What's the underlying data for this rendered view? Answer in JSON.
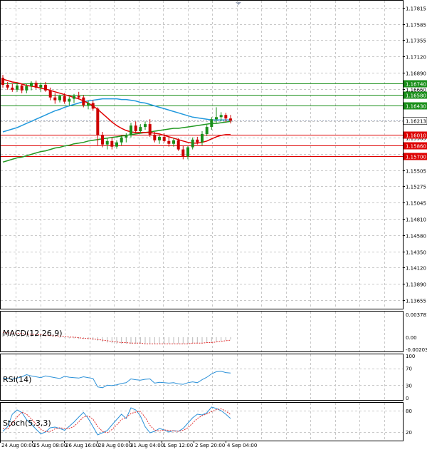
{
  "chart_data": [
    {
      "type": "candlestick",
      "price_ticks": [
        "1.17815",
        "1.17585",
        "1.17355",
        "1.17120",
        "1.16890",
        "1.16660",
        "1.16430",
        "1.16200",
        "1.15965",
        "1.15735",
        "1.15505",
        "1.15275",
        "1.15045",
        "1.14810",
        "1.14580",
        "1.14350",
        "1.14120",
        "1.13890",
        "1.13655"
      ],
      "ylim": [
        1.13655,
        1.17815
      ],
      "x_labels": [
        "24 Aug 00:00",
        "25 Aug 08:00",
        "26 Aug 16:00",
        "28 Aug 00:00",
        "31 Aug 04:00",
        "1 Sep 12:00",
        "2 Sep 20:00",
        "4 Sep 04:00"
      ],
      "candles": [
        [
          1.1682,
          1.1686,
          1.1668,
          1.1672
        ],
        [
          1.1672,
          1.1676,
          1.1665,
          1.1668
        ],
        [
          1.1668,
          1.1674,
          1.1662,
          1.1665
        ],
        [
          1.1665,
          1.1675,
          1.1662,
          1.1671
        ],
        [
          1.1671,
          1.1674,
          1.166,
          1.1664
        ],
        [
          1.1664,
          1.1673,
          1.166,
          1.167
        ],
        [
          1.167,
          1.1677,
          1.1664,
          1.1675
        ],
        [
          1.1675,
          1.1678,
          1.1666,
          1.1668
        ],
        [
          1.1668,
          1.1675,
          1.1662,
          1.1672
        ],
        [
          1.1672,
          1.1676,
          1.1662,
          1.1664
        ],
        [
          1.1664,
          1.1668,
          1.165,
          1.1654
        ],
        [
          1.1654,
          1.166,
          1.1645,
          1.165
        ],
        [
          1.165,
          1.1658,
          1.1647,
          1.1656
        ],
        [
          1.1656,
          1.166,
          1.1645,
          1.1648
        ],
        [
          1.1648,
          1.1655,
          1.1642,
          1.1652
        ],
        [
          1.1652,
          1.1659,
          1.1646,
          1.1656
        ],
        [
          1.1656,
          1.1662,
          1.1651,
          1.1654
        ],
        [
          1.1654,
          1.1657,
          1.164,
          1.1643
        ],
        [
          1.1643,
          1.165,
          1.1637,
          1.1646
        ],
        [
          1.1646,
          1.165,
          1.1635,
          1.1638
        ],
        [
          1.1638,
          1.164,
          1.1586,
          1.16
        ],
        [
          1.16,
          1.1605,
          1.1583,
          1.1587
        ],
        [
          1.1587,
          1.1596,
          1.158,
          1.1592
        ],
        [
          1.1592,
          1.1597,
          1.158,
          1.1584
        ],
        [
          1.1584,
          1.1593,
          1.1581,
          1.159
        ],
        [
          1.159,
          1.16,
          1.1586,
          1.1597
        ],
        [
          1.1597,
          1.1603,
          1.159,
          1.16
        ],
        [
          1.16,
          1.1618,
          1.1597,
          1.1614
        ],
        [
          1.1614,
          1.162,
          1.1603,
          1.1606
        ],
        [
          1.1606,
          1.1616,
          1.1603,
          1.1612
        ],
        [
          1.1612,
          1.162,
          1.1608,
          1.1616
        ],
        [
          1.1616,
          1.1623,
          1.1598,
          1.1601
        ],
        [
          1.1601,
          1.1605,
          1.159,
          1.1593
        ],
        [
          1.1593,
          1.16,
          1.1588,
          1.1598
        ],
        [
          1.1598,
          1.1603,
          1.159,
          1.1592
        ],
        [
          1.1592,
          1.1597,
          1.1584,
          1.1588
        ],
        [
          1.1588,
          1.1596,
          1.1584,
          1.1593
        ],
        [
          1.1593,
          1.1596,
          1.1578,
          1.158
        ],
        [
          1.158,
          1.1585,
          1.1566,
          1.157
        ],
        [
          1.157,
          1.1585,
          1.1566,
          1.1583
        ],
        [
          1.1583,
          1.1597,
          1.158,
          1.1594
        ],
        [
          1.1594,
          1.1598,
          1.1587,
          1.159
        ],
        [
          1.159,
          1.1606,
          1.1586,
          1.1602
        ],
        [
          1.1602,
          1.1615,
          1.1599,
          1.1612
        ],
        [
          1.1612,
          1.1626,
          1.1608,
          1.1623
        ],
        [
          1.1623,
          1.164,
          1.1618,
          1.1626
        ],
        [
          1.1626,
          1.1633,
          1.162,
          1.1629
        ],
        [
          1.1629,
          1.1632,
          1.1619,
          1.1624
        ],
        [
          1.1624,
          1.1629,
          1.1617,
          1.1621
        ]
      ],
      "ma_fast_color": "#e00000",
      "ma_fast": [
        1.168,
        1.1678,
        1.1676,
        1.1675,
        1.1673,
        1.1671,
        1.167,
        1.1669,
        1.1667,
        1.1666,
        1.1664,
        1.1662,
        1.166,
        1.1658,
        1.1656,
        1.1654,
        1.1652,
        1.1649,
        1.1646,
        1.1642,
        1.1637,
        1.1631,
        1.1625,
        1.1619,
        1.1614,
        1.161,
        1.1607,
        1.1605,
        1.1604,
        1.1604,
        1.1604,
        1.1604,
        1.1603,
        1.1602,
        1.16,
        1.1598,
        1.1596,
        1.1594,
        1.1592,
        1.159,
        1.1589,
        1.1589,
        1.159,
        1.1592,
        1.1595,
        1.1598,
        1.16,
        1.1601,
        1.1601
      ],
      "ma_mid_color": "#2299dd",
      "ma_mid": [
        1.1605,
        1.1607,
        1.1609,
        1.1611,
        1.1614,
        1.1617,
        1.162,
        1.1623,
        1.1626,
        1.1629,
        1.1632,
        1.1635,
        1.1637,
        1.164,
        1.1642,
        1.1644,
        1.1646,
        1.1648,
        1.1649,
        1.165,
        1.1651,
        1.1652,
        1.1652,
        1.1652,
        1.1652,
        1.1651,
        1.1651,
        1.165,
        1.1649,
        1.1647,
        1.1646,
        1.1644,
        1.1642,
        1.164,
        1.1638,
        1.1636,
        1.1634,
        1.1632,
        1.163,
        1.1628,
        1.1626,
        1.1625,
        1.1624,
        1.1623,
        1.1622,
        1.1622,
        1.1622,
        1.1622,
        1.1622
      ],
      "ma_slow_color": "#229922",
      "ma_slow": [
        1.1562,
        1.1564,
        1.1566,
        1.1568,
        1.1569,
        1.1571,
        1.1573,
        1.1575,
        1.1577,
        1.1578,
        1.158,
        1.1582,
        1.1583,
        1.1585,
        1.1586,
        1.1588,
        1.1589,
        1.159,
        1.1592,
        1.1593,
        1.1594,
        1.1595,
        1.1596,
        1.1597,
        1.1598,
        1.1599,
        1.16,
        1.1601,
        1.1602,
        1.1603,
        1.1604,
        1.1605,
        1.1606,
        1.1607,
        1.1608,
        1.1609,
        1.161,
        1.161,
        1.1611,
        1.1612,
        1.1613,
        1.1614,
        1.1615,
        1.1616,
        1.1617,
        1.1617,
        1.1618,
        1.1619,
        1.162
      ],
      "levels": [
        {
          "label": "1.16740",
          "value": 1.1674,
          "color": "#1a8f1a"
        },
        {
          "label": "1.16580",
          "value": 1.1658,
          "color": "#1a8f1a"
        },
        {
          "label": "1.16430",
          "value": 1.1643,
          "color": "#1a8f1a"
        },
        {
          "label": "1.16010",
          "value": 1.1601,
          "color": "#dd0000"
        },
        {
          "label": "1.15860",
          "value": 1.1586,
          "color": "#dd0000"
        },
        {
          "label": "1.15700",
          "value": 1.157,
          "color": "#dd0000"
        }
      ],
      "current_price": {
        "label": "1.16213",
        "value": 1.16213
      }
    },
    {
      "type": "histogram",
      "title": "MACD(12,26,9)",
      "y_ticks": [
        "0.003781",
        "0.00",
        "-0.002031"
      ],
      "ylim": [
        -0.002031,
        0.003781
      ],
      "macd": [
        0.0007,
        0.0006,
        0.0005,
        0.0005,
        0.0004,
        0.0004,
        0.0003,
        0.0003,
        0.0002,
        0.0002,
        0.0001,
        0.0,
        -0.0001,
        -0.0001,
        -0.0002,
        -0.0002,
        -0.0003,
        -0.0003,
        -0.0004,
        -0.0005,
        -0.0006,
        -0.0008,
        -0.0009,
        -0.001,
        -0.0011,
        -0.0011,
        -0.0011,
        -0.0011,
        -0.0011,
        -0.0011,
        -0.0011,
        -0.0011,
        -0.0011,
        -0.0011,
        -0.0011,
        -0.0011,
        -0.0011,
        -0.0011,
        -0.0011,
        -0.0011,
        -0.001,
        -0.001,
        -0.0009,
        -0.0009,
        -0.0008,
        -0.0007,
        -0.0006,
        -0.0005,
        -0.0004
      ],
      "signal": [
        0.0008,
        0.0007,
        0.0007,
        0.0006,
        0.0006,
        0.0005,
        0.0005,
        0.0004,
        0.0004,
        0.0003,
        0.0003,
        0.0002,
        0.0002,
        0.0001,
        0.0,
        0.0,
        -0.0001,
        -0.0002,
        -0.0002,
        -0.0003,
        -0.0004,
        -0.0005,
        -0.0006,
        -0.0007,
        -0.0008,
        -0.0009,
        -0.0009,
        -0.001,
        -0.001,
        -0.001,
        -0.0011,
        -0.0011,
        -0.0011,
        -0.0011,
        -0.0011,
        -0.0011,
        -0.0011,
        -0.0011,
        -0.0011,
        -0.0011,
        -0.001,
        -0.001,
        -0.001,
        -0.0009,
        -0.0009,
        -0.0008,
        -0.0007,
        -0.0006,
        -0.0005
      ],
      "signal_color": "#e03030"
    },
    {
      "type": "line",
      "title": "RSI(14)",
      "y_ticks": [
        "100",
        "70",
        "30",
        "0"
      ],
      "ylim": [
        0,
        100
      ],
      "values": [
        47,
        46,
        44,
        47,
        50,
        55,
        52,
        50,
        48,
        52,
        50,
        48,
        46,
        51,
        49,
        48,
        47,
        50,
        48,
        46,
        26,
        24,
        30,
        29,
        31,
        34,
        36,
        45,
        43,
        42,
        44,
        45,
        35,
        37,
        36,
        35,
        36,
        33,
        32,
        36,
        38,
        36,
        43,
        49,
        57,
        62,
        63,
        60,
        59
      ],
      "color": "#2a90d8"
    },
    {
      "type": "line",
      "title": "Stoch(5,3,3)",
      "y_ticks": [
        "80",
        "20"
      ],
      "ylim": [
        0,
        100
      ],
      "main": [
        22,
        35,
        70,
        82,
        75,
        55,
        42,
        28,
        15,
        20,
        32,
        34,
        30,
        25,
        36,
        48,
        62,
        75,
        58,
        35,
        12,
        18,
        24,
        40,
        55,
        70,
        58,
        88,
        82,
        65,
        35,
        18,
        22,
        30,
        26,
        20,
        24,
        22,
        30,
        45,
        60,
        70,
        68,
        74,
        90,
        86,
        80,
        70,
        58
      ],
      "main_color": "#2a90d8",
      "signal": [
        30,
        28,
        45,
        62,
        76,
        70,
        57,
        42,
        28,
        21,
        22,
        29,
        32,
        30,
        30,
        36,
        49,
        62,
        65,
        56,
        35,
        22,
        18,
        27,
        40,
        55,
        61,
        72,
        76,
        78,
        61,
        39,
        25,
        23,
        26,
        25,
        23,
        22,
        25,
        32,
        45,
        58,
        66,
        71,
        77,
        83,
        85,
        79,
        69
      ],
      "signal_color": "#e03030"
    }
  ]
}
